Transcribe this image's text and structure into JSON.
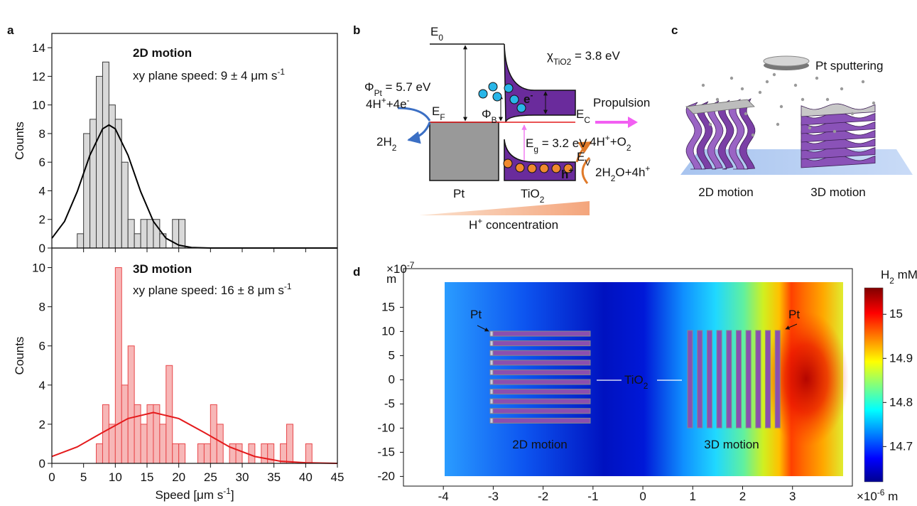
{
  "panel_labels": [
    "a",
    "b",
    "c",
    "d"
  ],
  "chart_data": [
    {
      "type": "histogram",
      "bins": [
        4,
        5,
        6,
        7,
        8,
        9,
        10,
        11,
        12,
        13,
        14,
        15,
        16,
        17,
        18,
        19,
        20,
        21
      ],
      "values": [
        1,
        8,
        9,
        12,
        13,
        10,
        9,
        6,
        2,
        1,
        2,
        2,
        2,
        1,
        0,
        2,
        2
      ],
      "color": "#d9d9d9",
      "edge_color": "#3a3a3a",
      "fit": {
        "x": [
          0,
          2,
          4,
          6,
          8,
          9,
          10,
          12,
          14,
          16,
          18,
          20,
          22,
          25,
          30,
          45
        ],
        "values": [
          0.68,
          1.86,
          3.94,
          6.49,
          8.33,
          8.6,
          8.33,
          6.49,
          3.94,
          1.86,
          0.68,
          0.2,
          0.04,
          0,
          0,
          0
        ],
        "color": "#000000"
      },
      "xlim": [
        0,
        45
      ],
      "ylim": [
        0,
        15
      ],
      "yticks": [
        0,
        2,
        4,
        6,
        8,
        10,
        12,
        14
      ],
      "y_label": "Counts",
      "annotations": [
        {
          "text": "2D motion",
          "color": "#000000"
        },
        {
          "text": [
            "xy plane speed: 9 ± 4 μm s",
            {
              "sup": "-1"
            }
          ],
          "color": "#000000"
        }
      ]
    },
    {
      "type": "histogram",
      "bins": [
        7,
        8,
        9,
        10,
        11,
        12,
        13,
        14,
        15,
        16,
        17,
        18,
        19,
        20,
        21,
        22,
        23,
        24,
        25,
        26,
        27,
        28,
        29,
        30,
        31,
        32,
        33,
        34,
        35,
        36,
        37,
        38,
        39,
        40,
        41
      ],
      "values": [
        1,
        3,
        2,
        10,
        4,
        6,
        3,
        2,
        3,
        3,
        2,
        5,
        1,
        1,
        0,
        0,
        1,
        1,
        3,
        2,
        0,
        1,
        1,
        0,
        1,
        0,
        1,
        1,
        0,
        1,
        2,
        0,
        0,
        1
      ],
      "color": "#f7b7b7",
      "edge_color": "#e8474a",
      "fit": {
        "x": [
          0,
          4,
          8,
          12,
          16,
          20,
          24,
          28,
          32,
          36,
          40,
          45
        ],
        "values": [
          0.35,
          0.84,
          1.58,
          2.29,
          2.6,
          2.29,
          1.58,
          0.84,
          0.35,
          0.11,
          0.03,
          0
        ],
        "color": "#e41a1c"
      },
      "xlim": [
        0,
        45
      ],
      "xticks": [
        0,
        5,
        10,
        15,
        20,
        25,
        30,
        35,
        40,
        45
      ],
      "ylim": [
        0,
        11
      ],
      "yticks": [
        0,
        2,
        4,
        6,
        8,
        10
      ],
      "y_label": "Counts",
      "x_label": [
        "Speed [μm s",
        {
          "sup": "-1"
        },
        "]"
      ],
      "annotations": [
        {
          "text": "3D motion",
          "color": "#e41a1c"
        },
        {
          "text": [
            "xy plane speed: 16 ± 8 μm s",
            {
              "sup": "-1"
            }
          ],
          "color": "#e41a1c"
        }
      ]
    },
    {
      "type": "heatmap",
      "xlim": [
        -4.8,
        4.2
      ],
      "xticks": [
        -4,
        -3,
        -2,
        -1,
        0,
        1,
        2,
        3
      ],
      "ylim": [
        -22,
        23
      ],
      "yticks": [
        -20,
        -15,
        -10,
        -5,
        0,
        5,
        10,
        15
      ],
      "x_scale_label": [
        "×10",
        {
          "sup": "-6"
        },
        " m"
      ],
      "y_scale_label": [
        "×10",
        {
          "sup": "-7"
        }
      ],
      "y_unit": "m",
      "colorbar": {
        "label": [
          "H",
          {
            "sub": "2"
          },
          " mM"
        ],
        "zlim": [
          14.62,
          15.06
        ],
        "zticks": [
          14.7,
          14.8,
          14.9,
          15
        ]
      },
      "annotations": {
        "pt_left": "Pt",
        "pt_right": "Pt",
        "tio2": [
          "TiO",
          {
            "sub": "2"
          }
        ],
        "motion_2d": "2D motion",
        "motion_3d": "3D motion"
      }
    }
  ],
  "diagram_b": {
    "e0": [
      "E",
      {
        "sub": "0"
      }
    ],
    "chi": [
      "χ",
      {
        "sub": "TiO2"
      },
      " = 3.8 eV"
    ],
    "phi_pt": [
      "Φ",
      {
        "sub": "Pt"
      },
      " = 5.7 eV"
    ],
    "reduction": [
      "4H",
      {
        "sup": "+"
      },
      "+4e",
      {
        "sup": "-"
      }
    ],
    "ef": [
      "E",
      {
        "sub": "F"
      }
    ],
    "h2": [
      "2H",
      {
        "sub": "2"
      }
    ],
    "phi_b": [
      "Φ",
      {
        "sub": "B"
      }
    ],
    "electron": [
      "e",
      {
        "sup": "-"
      }
    ],
    "ec": [
      "E",
      {
        "sub": "C"
      }
    ],
    "propulsion": "Propulsion",
    "eg": [
      "E",
      {
        "sub": "g"
      },
      " = 3.2 eV"
    ],
    "ev": [
      "E",
      {
        "sub": "V"
      }
    ],
    "hole": [
      "h",
      {
        "sup": "+"
      }
    ],
    "oxidation": [
      "4H",
      {
        "sup": "+"
      },
      "+O",
      {
        "sub": "2"
      }
    ],
    "water": [
      "2H",
      {
        "sub": "2"
      },
      "O+4h",
      {
        "sup": "+"
      }
    ],
    "pt": "Pt",
    "tio2": [
      "TiO",
      {
        "sub": "2"
      }
    ],
    "concentration": [
      "H",
      {
        "sup": "+"
      },
      " concentration"
    ]
  },
  "diagram_c": {
    "sputtering": "Pt sputtering",
    "motion_2d": "2D motion",
    "motion_3d": "3D motion"
  }
}
